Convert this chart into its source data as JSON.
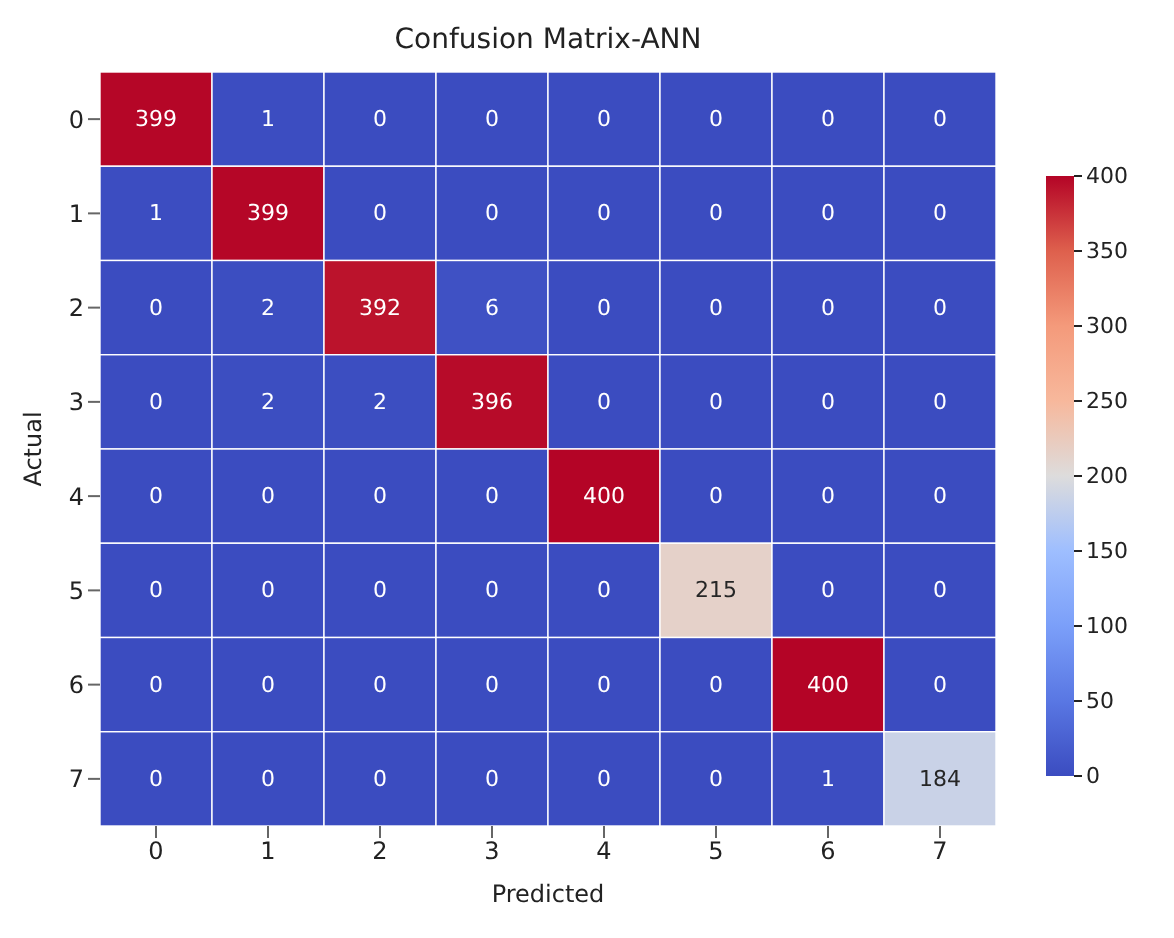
{
  "chart_data": {
    "type": "heatmap",
    "title": "Confusion Matrix-ANN",
    "xlabel": "Predicted",
    "ylabel": "Actual",
    "categories": [
      "0",
      "1",
      "2",
      "3",
      "4",
      "5",
      "6",
      "7"
    ],
    "y_categories": [
      "0",
      "1",
      "2",
      "3",
      "4",
      "5",
      "6",
      "7"
    ],
    "cells": [
      [
        399,
        1,
        0,
        0,
        0,
        0,
        0,
        0
      ],
      [
        1,
        399,
        0,
        0,
        0,
        0,
        0,
        0
      ],
      [
        0,
        2,
        392,
        6,
        0,
        0,
        0,
        0
      ],
      [
        0,
        2,
        2,
        396,
        0,
        0,
        0,
        0
      ],
      [
        0,
        0,
        0,
        0,
        400,
        0,
        0,
        0
      ],
      [
        0,
        0,
        0,
        0,
        0,
        215,
        0,
        0
      ],
      [
        0,
        0,
        0,
        0,
        0,
        0,
        400,
        0
      ],
      [
        0,
        0,
        0,
        0,
        0,
        0,
        1,
        184
      ]
    ],
    "data_labels": true,
    "clim": [
      0,
      400
    ],
    "cticks": [
      0,
      50,
      100,
      150,
      200,
      250,
      300,
      350,
      400
    ]
  }
}
